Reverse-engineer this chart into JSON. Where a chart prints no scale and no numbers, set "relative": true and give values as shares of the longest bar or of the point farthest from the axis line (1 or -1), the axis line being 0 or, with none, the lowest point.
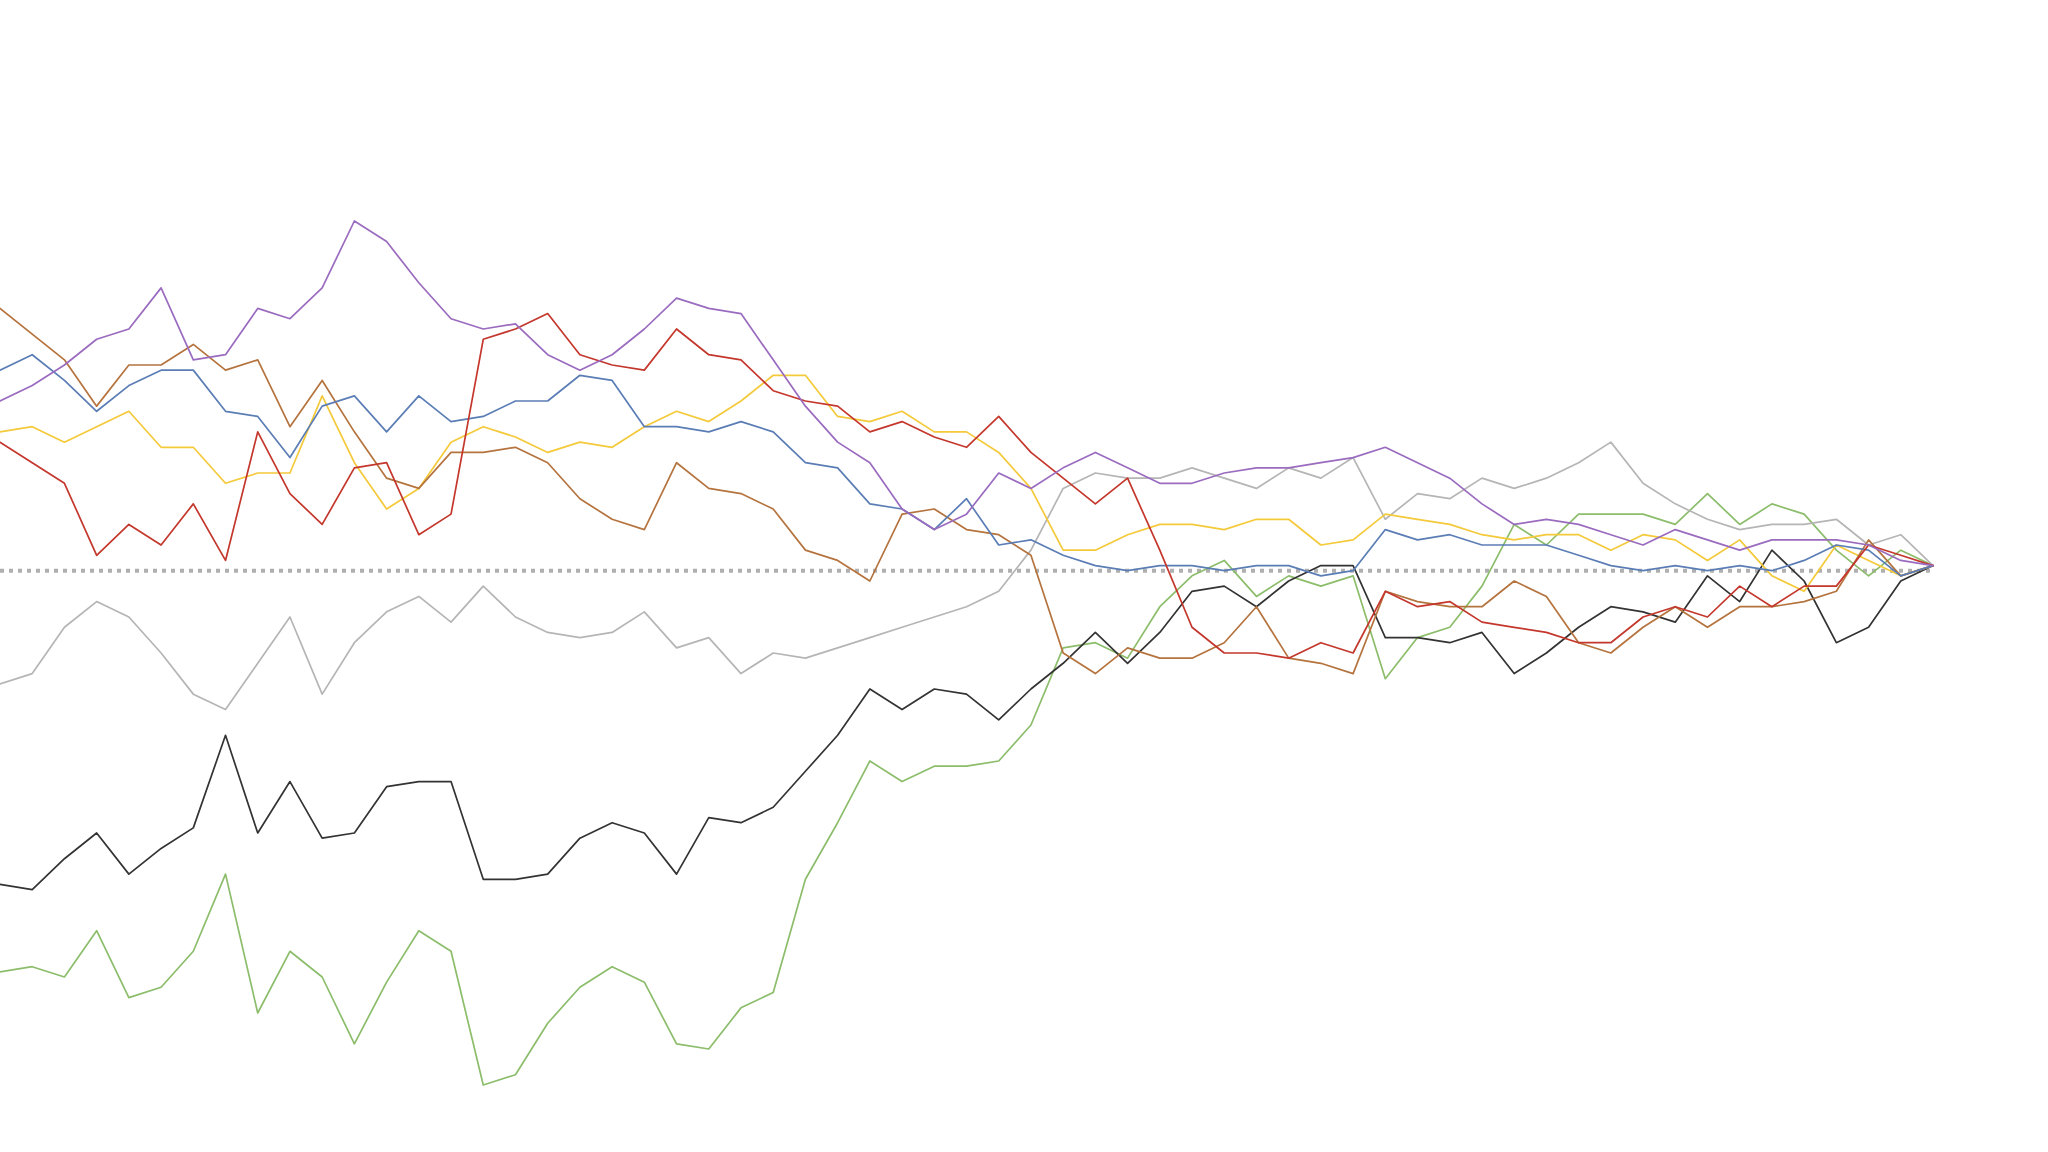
{
  "chart_data": {
    "type": "line",
    "relative": true,
    "marker": "none",
    "categories": [
      null,
      null,
      null,
      null,
      null,
      null,
      null,
      null,
      null,
      null,
      null,
      null,
      null,
      null,
      null,
      null,
      null,
      null,
      null,
      null,
      null,
      null,
      null,
      null,
      null,
      null,
      null,
      null,
      null,
      null,
      null,
      null,
      null,
      null,
      null,
      null,
      null,
      null,
      null,
      null,
      null,
      null,
      null,
      null,
      null,
      null,
      null,
      null,
      null,
      null,
      null,
      null,
      null,
      null,
      null,
      null,
      null,
      null,
      null,
      null,
      null
    ],
    "ref_lines": [
      {
        "axis": "y",
        "value": 0,
        "color": "#b0b0b0",
        "line_style": "dotted"
      }
    ],
    "series": [
      {
        "color": "#9a6bbf",
        "values": [
          0.33,
          0.36,
          0.4,
          0.45,
          0.47,
          0.55,
          0.41,
          0.42,
          0.51,
          0.49,
          0.55,
          0.68,
          0.64,
          0.56,
          0.49,
          0.47,
          0.48,
          0.42,
          0.39,
          0.42,
          0.47,
          0.53,
          0.51,
          0.5,
          0.41,
          0.32,
          0.25,
          0.21,
          0.12,
          0.08,
          0.11,
          0.19,
          0.16,
          0.2,
          0.23,
          0.2,
          0.17,
          0.17,
          0.19,
          0.2,
          0.2,
          0.21,
          0.22,
          0.24,
          0.21,
          0.18,
          0.13,
          0.09,
          0.1,
          0.09,
          0.07,
          0.05,
          0.08,
          0.06,
          0.04,
          0.06,
          0.06,
          0.06,
          0.05,
          0.02,
          0.01
        ]
      },
      {
        "color": "#c4372c",
        "values": [
          0.25,
          0.21,
          0.17,
          0.03,
          0.09,
          0.05,
          0.13,
          0.02,
          0.27,
          0.15,
          0.09,
          0.2,
          0.21,
          0.07,
          0.11,
          0.45,
          0.47,
          0.5,
          0.42,
          0.4,
          0.39,
          0.47,
          0.42,
          0.41,
          0.35,
          0.33,
          0.32,
          0.27,
          0.29,
          0.26,
          0.24,
          0.3,
          0.23,
          0.18,
          0.13,
          0.18,
          0.04,
          -0.11,
          -0.16,
          -0.16,
          -0.17,
          -0.14,
          -0.16,
          -0.04,
          -0.07,
          -0.06,
          -0.1,
          -0.11,
          -0.12,
          -0.14,
          -0.14,
          -0.09,
          -0.07,
          -0.09,
          -0.03,
          -0.07,
          -0.03,
          -0.03,
          0.05,
          0.03,
          0.01
        ]
      },
      {
        "color": "#5b7db5",
        "values": [
          0.39,
          0.42,
          0.37,
          0.31,
          0.36,
          0.39,
          0.39,
          0.31,
          0.3,
          0.22,
          0.32,
          0.34,
          0.27,
          0.34,
          0.29,
          0.3,
          0.33,
          0.33,
          0.38,
          0.37,
          0.28,
          0.28,
          0.27,
          0.29,
          0.27,
          0.21,
          0.2,
          0.13,
          0.12,
          0.08,
          0.14,
          0.05,
          0.06,
          0.03,
          0.01,
          0.0,
          0.01,
          0.01,
          0.0,
          0.01,
          0.01,
          -0.01,
          0.0,
          0.08,
          0.06,
          0.07,
          0.05,
          0.05,
          0.05,
          0.03,
          0.01,
          0.0,
          0.01,
          0.0,
          0.01,
          0.0,
          0.02,
          0.05,
          0.04,
          -0.01,
          0.01
        ]
      },
      {
        "color": "#b5733e",
        "values": [
          0.51,
          0.46,
          0.41,
          0.32,
          0.4,
          0.4,
          0.44,
          0.39,
          0.41,
          0.28,
          0.37,
          0.27,
          0.18,
          0.16,
          0.23,
          0.23,
          0.24,
          0.21,
          0.14,
          0.1,
          0.08,
          0.21,
          0.16,
          0.15,
          0.12,
          0.04,
          0.02,
          -0.02,
          0.11,
          0.12,
          0.08,
          0.07,
          0.03,
          -0.16,
          -0.2,
          -0.15,
          -0.17,
          -0.17,
          -0.14,
          -0.07,
          -0.17,
          -0.18,
          -0.2,
          -0.04,
          -0.06,
          -0.07,
          -0.07,
          -0.02,
          -0.05,
          -0.14,
          -0.16,
          -0.11,
          -0.07,
          -0.11,
          -0.07,
          -0.07,
          -0.06,
          -0.04,
          0.06,
          -0.01,
          0.01
        ]
      },
      {
        "color": "#f4c93a",
        "values": [
          0.27,
          0.28,
          0.25,
          0.28,
          0.31,
          0.24,
          0.24,
          0.17,
          0.19,
          0.19,
          0.34,
          0.21,
          0.12,
          0.16,
          0.25,
          0.28,
          0.26,
          0.23,
          0.25,
          0.24,
          0.28,
          0.31,
          0.29,
          0.33,
          0.38,
          0.38,
          0.3,
          0.29,
          0.31,
          0.27,
          0.27,
          0.23,
          0.16,
          0.04,
          0.04,
          0.07,
          0.09,
          0.09,
          0.08,
          0.1,
          0.1,
          0.05,
          0.06,
          0.11,
          0.1,
          0.09,
          0.07,
          0.06,
          0.07,
          0.07,
          0.04,
          0.07,
          0.06,
          0.02,
          0.06,
          -0.01,
          -0.04,
          0.05,
          0.02,
          -0.01,
          0.01
        ]
      },
      {
        "color": "#b5b5b5",
        "values": [
          -0.22,
          -0.2,
          -0.11,
          -0.06,
          -0.09,
          -0.16,
          -0.24,
          -0.27,
          -0.18,
          -0.09,
          -0.24,
          -0.14,
          -0.08,
          -0.05,
          -0.1,
          -0.03,
          -0.09,
          -0.12,
          -0.13,
          -0.12,
          -0.08,
          -0.15,
          -0.13,
          -0.2,
          -0.16,
          -0.17,
          -0.15,
          -0.13,
          -0.11,
          -0.09,
          -0.07,
          -0.04,
          0.04,
          0.16,
          0.19,
          0.18,
          0.18,
          0.2,
          0.18,
          0.16,
          0.2,
          0.18,
          0.22,
          0.1,
          0.15,
          0.14,
          0.18,
          0.16,
          0.18,
          0.21,
          0.25,
          0.17,
          0.13,
          0.1,
          0.08,
          0.09,
          0.09,
          0.1,
          0.05,
          0.07,
          0.01
        ]
      },
      {
        "color": "#333333",
        "values": [
          -0.61,
          -0.62,
          -0.56,
          -0.51,
          -0.59,
          -0.54,
          -0.5,
          -0.32,
          -0.51,
          -0.41,
          -0.52,
          -0.51,
          -0.42,
          -0.41,
          -0.41,
          -0.6,
          -0.6,
          -0.59,
          -0.52,
          -0.49,
          -0.51,
          -0.59,
          -0.48,
          -0.49,
          -0.46,
          -0.39,
          -0.32,
          -0.23,
          -0.27,
          -0.23,
          -0.24,
          -0.29,
          -0.23,
          -0.18,
          -0.12,
          -0.18,
          -0.12,
          -0.04,
          -0.03,
          -0.07,
          -0.02,
          0.01,
          0.01,
          -0.13,
          -0.13,
          -0.14,
          -0.12,
          -0.2,
          -0.16,
          -0.11,
          -0.07,
          -0.08,
          -0.1,
          -0.01,
          -0.06,
          0.04,
          -0.02,
          -0.14,
          -0.11,
          -0.02,
          0.01
        ]
      },
      {
        "color": "#8cbd6b",
        "values": [
          -0.78,
          -0.77,
          -0.79,
          -0.7,
          -0.83,
          -0.81,
          -0.74,
          -0.59,
          -0.86,
          -0.74,
          -0.79,
          -0.92,
          -0.8,
          -0.7,
          -0.74,
          -1,
          -0.98,
          -0.88,
          -0.81,
          -0.77,
          -0.8,
          -0.92,
          -0.93,
          -0.85,
          -0.82,
          -0.6,
          -0.49,
          -0.37,
          -0.41,
          -0.38,
          -0.38,
          -0.37,
          -0.3,
          -0.15,
          -0.14,
          -0.17,
          -0.07,
          -0.01,
          0.02,
          -0.05,
          -0.01,
          -0.03,
          -0.01,
          -0.21,
          -0.13,
          -0.11,
          -0.03,
          0.09,
          0.05,
          0.11,
          0.11,
          0.11,
          0.09,
          0.15,
          0.09,
          0.13,
          0.11,
          0.04,
          -0.01,
          0.04,
          0.01
        ]
      }
    ]
  }
}
